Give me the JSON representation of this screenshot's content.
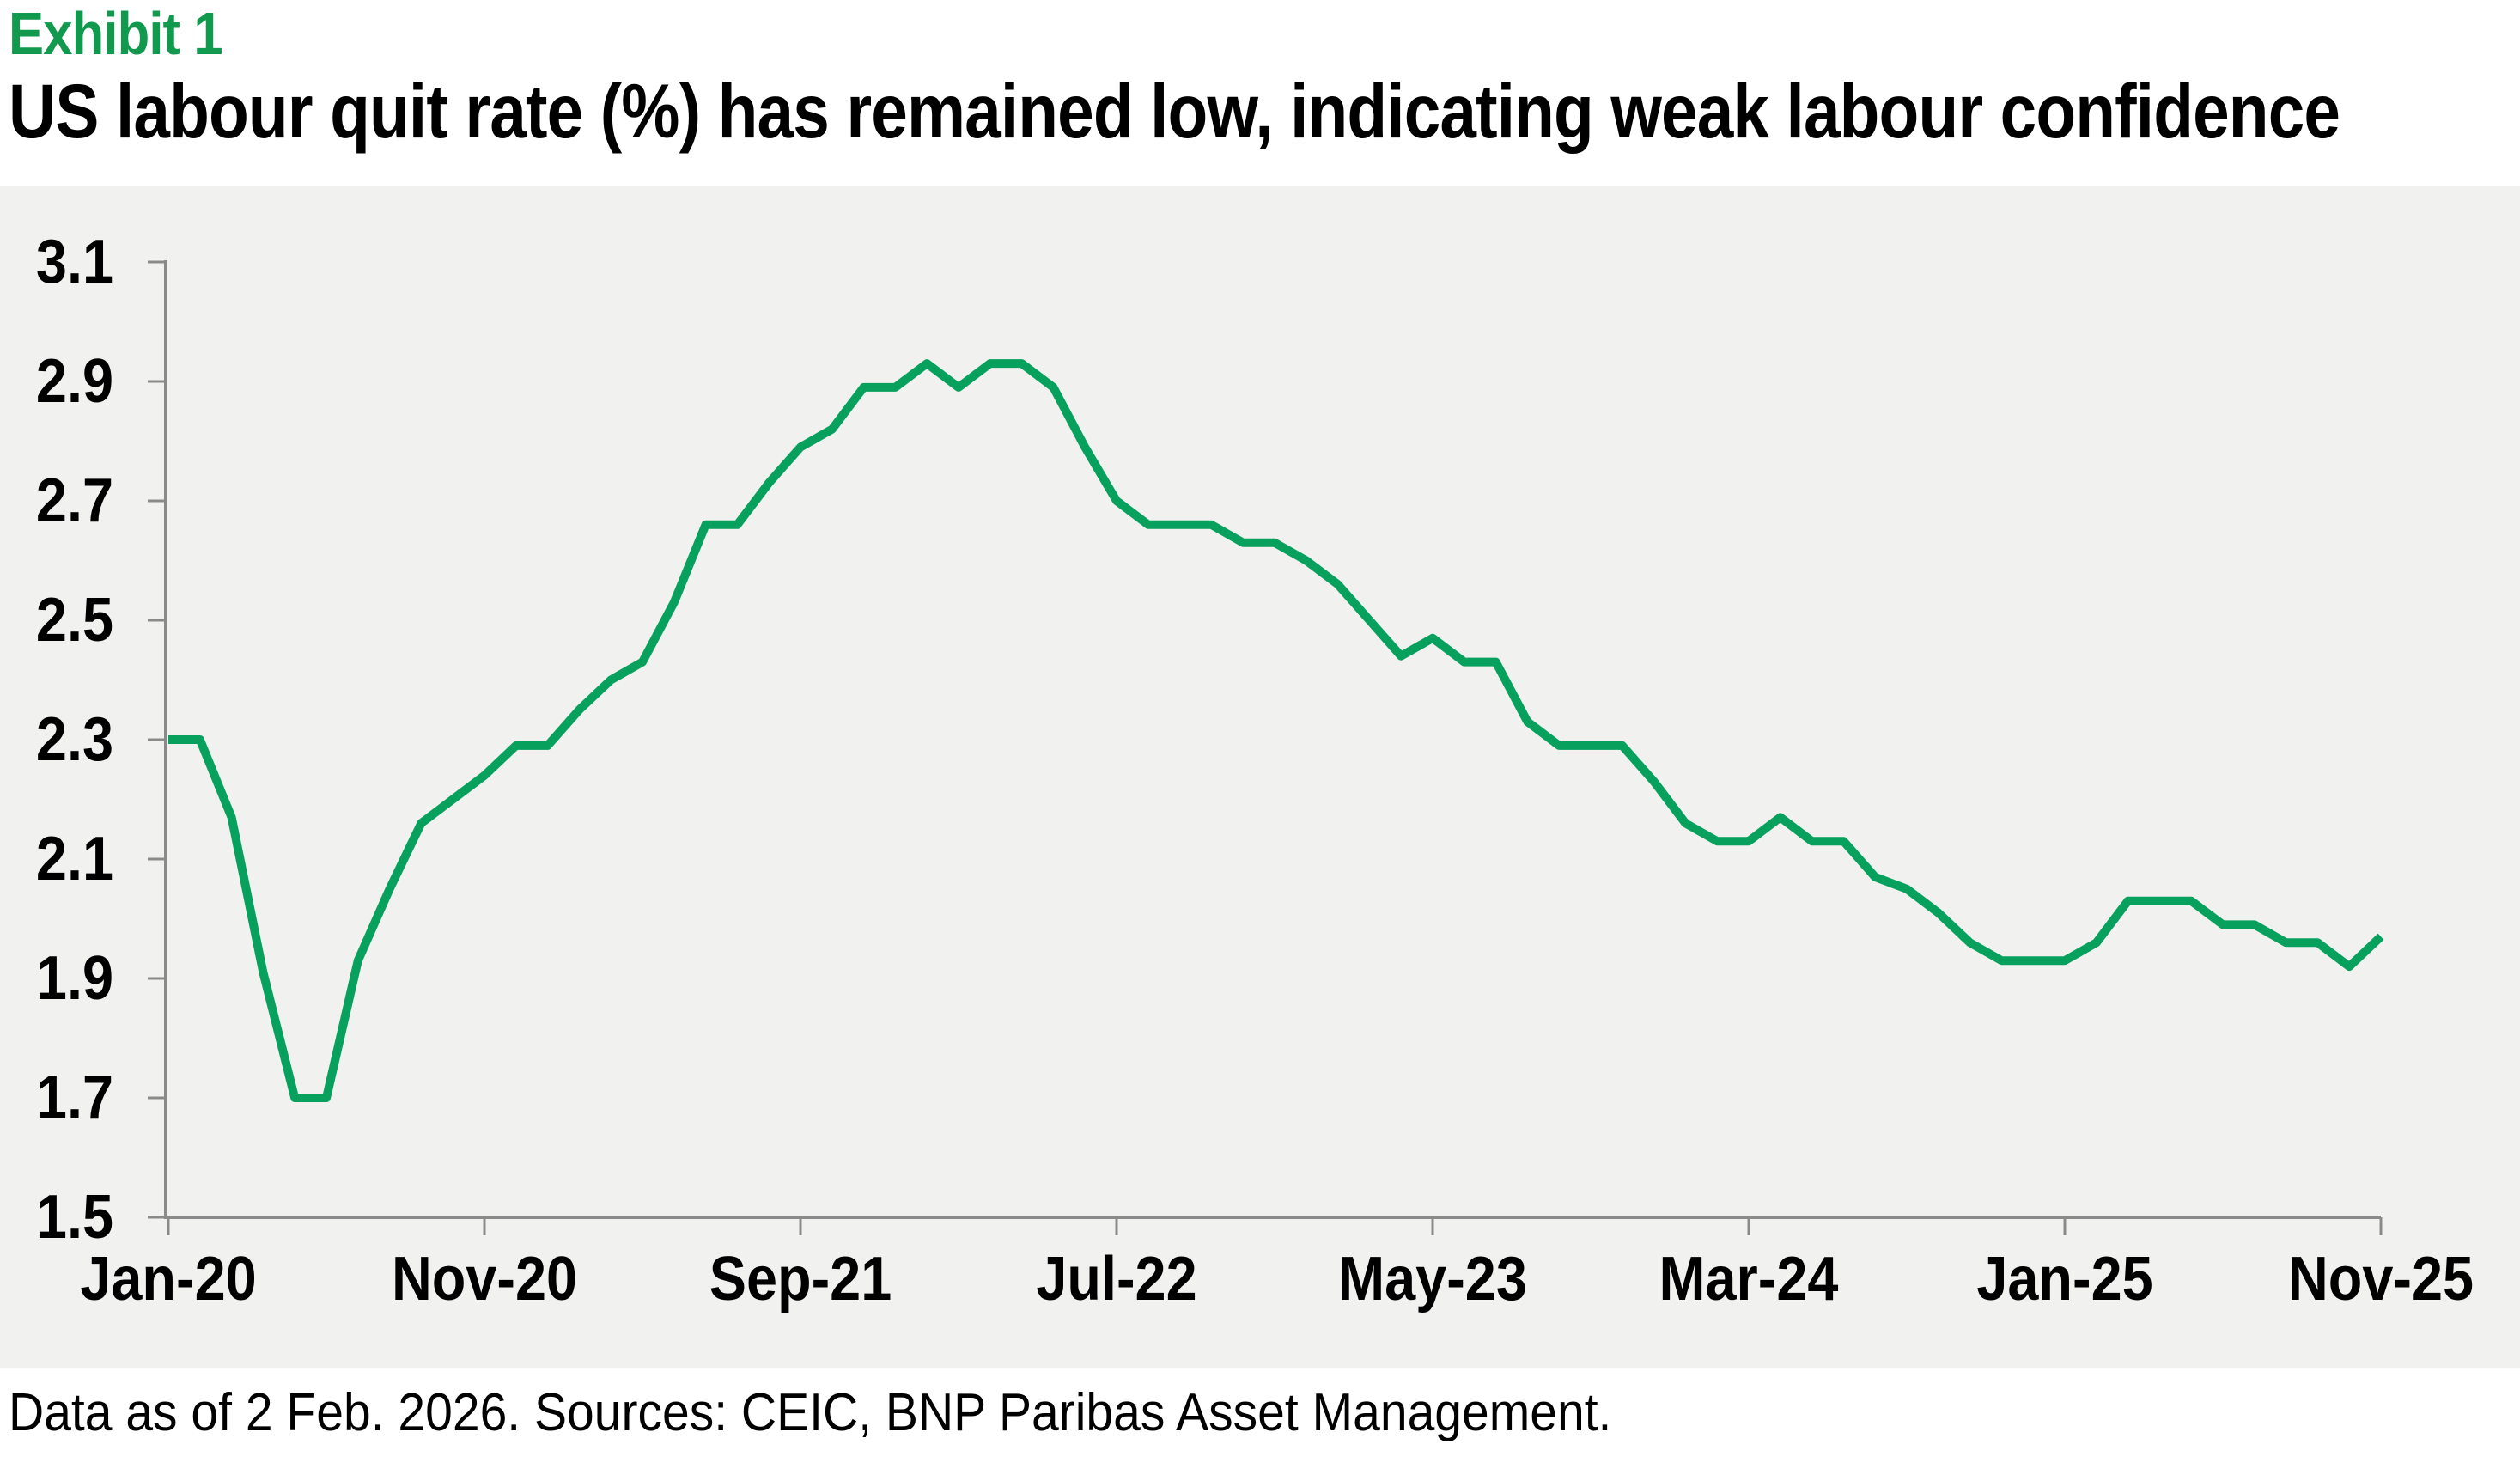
{
  "header": {
    "exhibit": "Exhibit 1",
    "title": "US labour quit rate (%) has remained low, indicating weak labour confidence"
  },
  "footer": {
    "text": "Data as of 2 Feb. 2026. Sources: CEIC, BNP Paribas Asset Management."
  },
  "colors": {
    "line_green": "#07a05c",
    "exhibit_green": "#11994e",
    "plot_background": "#f1f1f0",
    "axis_gray": "#8a8a8a",
    "text_black": "#000000",
    "page_background": "#ffffff"
  },
  "chart_data": {
    "type": "line",
    "title": "US labour quit rate (%)",
    "series": [
      {
        "name": "US labour quit rate (%)",
        "values": [
          2.3,
          2.3,
          2.17,
          1.91,
          1.7,
          1.7,
          1.93,
          2.05,
          2.16,
          2.2,
          2.24,
          2.29,
          2.29,
          2.35,
          2.4,
          2.43,
          2.53,
          2.66,
          2.66,
          2.73,
          2.79,
          2.82,
          2.89,
          2.89,
          2.93,
          2.89,
          2.93,
          2.93,
          2.89,
          2.79,
          2.7,
          2.66,
          2.66,
          2.66,
          2.63,
          2.63,
          2.6,
          2.56,
          2.5,
          2.44,
          2.47,
          2.43,
          2.43,
          2.33,
          2.29,
          2.29,
          2.29,
          2.23,
          2.16,
          2.13,
          2.13,
          2.17,
          2.13,
          2.13,
          2.07,
          2.05,
          2.01,
          1.96,
          1.93,
          1.93,
          1.93,
          1.96,
          2.03,
          2.03,
          2.03,
          1.99,
          1.99,
          1.96,
          1.96,
          1.92,
          1.97
        ]
      }
    ],
    "x": [
      "Jan-20",
      "Feb-20",
      "Mar-20",
      "Apr-20",
      "May-20",
      "Jun-20",
      "Jul-20",
      "Aug-20",
      "Sep-20",
      "Oct-20",
      "Nov-20",
      "Dec-20",
      "Jan-21",
      "Feb-21",
      "Mar-21",
      "Apr-21",
      "May-21",
      "Jun-21",
      "Jul-21",
      "Aug-21",
      "Sep-21",
      "Oct-21",
      "Nov-21",
      "Dec-21",
      "Jan-22",
      "Feb-22",
      "Mar-22",
      "Apr-22",
      "May-22",
      "Jun-22",
      "Jul-22",
      "Aug-22",
      "Sep-22",
      "Oct-22",
      "Nov-22",
      "Dec-22",
      "Jan-23",
      "Feb-23",
      "Mar-23",
      "Apr-23",
      "May-23",
      "Jun-23",
      "Jul-23",
      "Aug-23",
      "Sep-23",
      "Oct-23",
      "Nov-23",
      "Dec-23",
      "Jan-24",
      "Feb-24",
      "Mar-24",
      "Apr-24",
      "May-24",
      "Jun-24",
      "Jul-24",
      "Aug-24",
      "Sep-24",
      "Oct-24",
      "Nov-24",
      "Dec-24",
      "Jan-25",
      "Feb-25",
      "Mar-25",
      "Apr-25",
      "May-25",
      "Jun-25",
      "Jul-25",
      "Aug-25",
      "Sep-25",
      "Oct-25",
      "Nov-25"
    ],
    "x_tick_labels": [
      "Jan-20",
      "Nov-20",
      "Sep-21",
      "Jul-22",
      "May-23",
      "Mar-24",
      "Jan-25",
      "Nov-25"
    ],
    "x_tick_positions": [
      0,
      10,
      20,
      30,
      40,
      50,
      60,
      70
    ],
    "y_tick_labels": [
      "3.1",
      "2.9",
      "2.7",
      "2.5",
      "2.3",
      "2.1",
      "1.9",
      "1.7",
      "1.5"
    ],
    "ylim": [
      1.5,
      3.1
    ],
    "y_tick_step": 0.2,
    "xlabel": "",
    "ylabel": "",
    "grid": false,
    "legend": "none"
  }
}
